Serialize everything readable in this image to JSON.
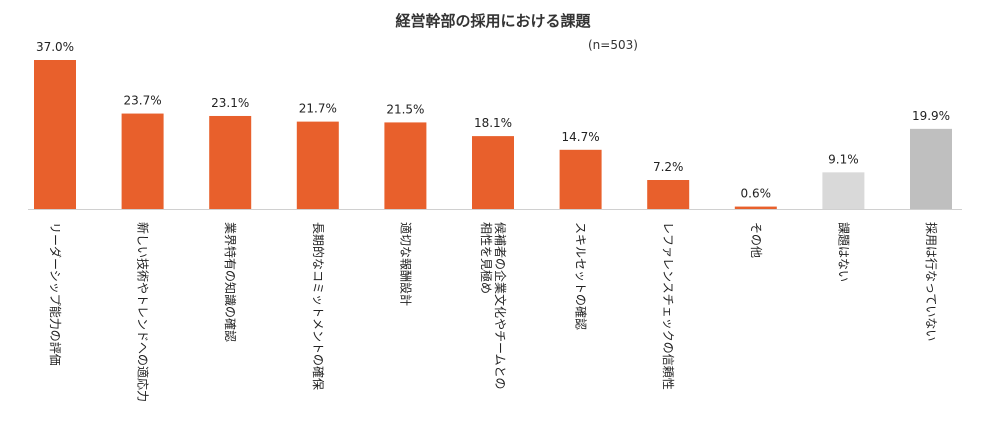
{
  "chart_data": {
    "type": "bar",
    "title": "経営幹部の採用における課題",
    "subtitle": "(n=503)",
    "xlabel": "",
    "ylabel": "",
    "ylim": [
      0,
      37
    ],
    "grid": false,
    "unit": "%",
    "categories": [
      "リーダーシップ能力の評価",
      "新しい技術やトレンドへの適応力",
      "業界特有の知識の確認",
      "長期的なコミットメントの確保",
      "適切な報酬設計",
      "候補者の企業文化やチームとの相性を見極め",
      "スキルセットの確認",
      "レファレンスチェックの信頼性",
      "その他",
      "課題はない",
      "採用は行なっていない"
    ],
    "values": [
      37.0,
      23.7,
      23.1,
      21.7,
      21.5,
      18.1,
      14.7,
      7.2,
      0.6,
      9.1,
      19.9
    ],
    "value_labels": [
      "37.0%",
      "23.7%",
      "23.1%",
      "21.7%",
      "21.5%",
      "18.1%",
      "14.7%",
      "7.2%",
      "0.6%",
      "9.1%",
      "19.9%"
    ],
    "label_lines": [
      [
        "リーダーシップ能力の評価"
      ],
      [
        "新しい技術やトレンドへの適応力"
      ],
      [
        "業界特有の知識の確認"
      ],
      [
        "長期的なコミットメントの確保"
      ],
      [
        "適切な報酬設計"
      ],
      [
        "候補者の企業文化やチームとの",
        "相性を見極め"
      ],
      [
        "スキルセットの確認"
      ],
      [
        "レファレンスチェックの信頼性"
      ],
      [
        "その他"
      ],
      [
        "課題はない"
      ],
      [
        "採用は行なっていない"
      ]
    ],
    "colors": [
      "#e8602c",
      "#e8602c",
      "#e8602c",
      "#e8602c",
      "#e8602c",
      "#e8602c",
      "#e8602c",
      "#e8602c",
      "#e8602c",
      "#d9d9d9",
      "#bfbfbf"
    ]
  }
}
